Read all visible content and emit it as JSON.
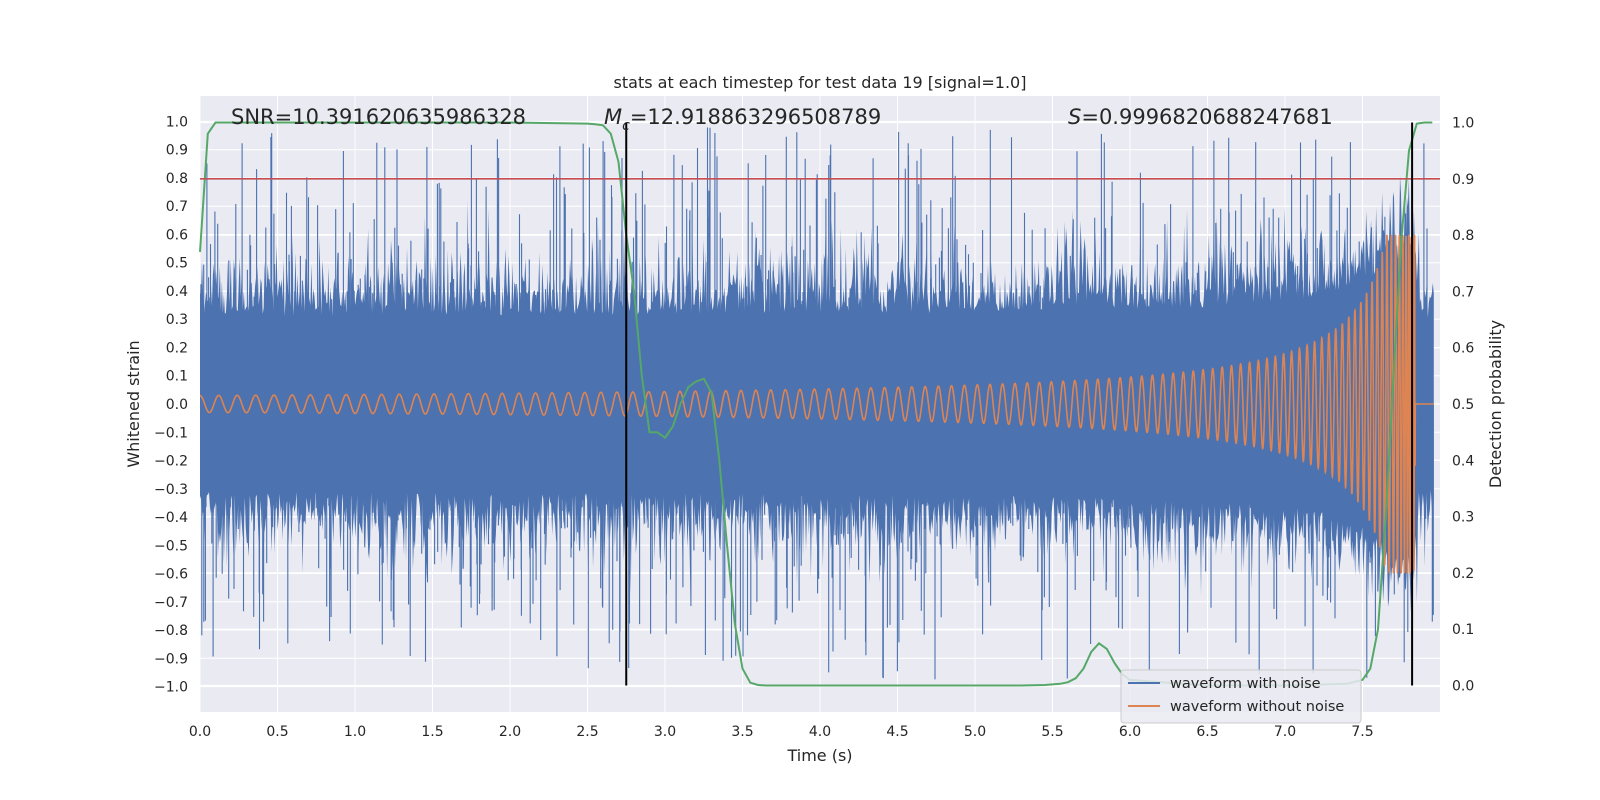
{
  "chart_data": {
    "type": "line",
    "title": "stats at each timestep for test data 19 [signal=1.0]",
    "xlabel": "Time (s)",
    "ylabel": "Whitened strain",
    "y2label": "Detection probability",
    "xlim": [
      0.0,
      8.0
    ],
    "ylim": [
      -1.09,
      1.09
    ],
    "y2lim": [
      -0.047,
      1.047
    ],
    "x_ticks": [
      "0.0",
      "0.5",
      "1.0",
      "1.5",
      "2.0",
      "2.5",
      "3.0",
      "3.5",
      "4.0",
      "4.5",
      "5.0",
      "5.5",
      "6.0",
      "6.5",
      "7.0",
      "7.5"
    ],
    "y_ticks": [
      "1.0",
      "0.9",
      "0.8",
      "0.7",
      "0.6",
      "0.5",
      "0.4",
      "0.3",
      "0.2",
      "0.1",
      "0.0",
      "−0.1",
      "−0.2",
      "−0.3",
      "−0.4",
      "−0.5",
      "−0.6",
      "−0.7",
      "−0.8",
      "−0.9",
      "−1.0"
    ],
    "y2_ticks": [
      "1.0",
      "0.9",
      "0.8",
      "0.7",
      "0.6",
      "0.5",
      "0.4",
      "0.3",
      "0.2",
      "0.1",
      "0.0"
    ],
    "annotations": {
      "snr": "SNR=10.391620635986328",
      "mc_symbol": "M",
      "mc_sub": "c",
      "mc_value": "=12.918863296508789",
      "s_symbol": "S",
      "s_value": "=0.9996820688247681"
    },
    "threshold": 0.9,
    "vlines_x": [
      2.75,
      7.82
    ],
    "signal_end_x": 7.84,
    "series": [
      {
        "name": "waveform with noise",
        "color": "#4c72b0"
      },
      {
        "name": "waveform without noise",
        "color": "#dd8452"
      },
      {
        "name": "detection probability",
        "color": "#55a868",
        "x": [
          0.0,
          0.05,
          0.1,
          0.2,
          0.5,
          1.0,
          1.5,
          2.0,
          2.5,
          2.55,
          2.6,
          2.65,
          2.7,
          2.75,
          2.8,
          2.85,
          2.9,
          2.95,
          3.0,
          3.05,
          3.1,
          3.15,
          3.2,
          3.25,
          3.3,
          3.35,
          3.4,
          3.45,
          3.5,
          3.55,
          3.6,
          3.65,
          4.0,
          4.5,
          5.0,
          5.3,
          5.45,
          5.55,
          5.6,
          5.65,
          5.7,
          5.75,
          5.8,
          5.85,
          5.9,
          5.95,
          6.0,
          6.5,
          7.0,
          7.4,
          7.5,
          7.55,
          7.6,
          7.65,
          7.7,
          7.75,
          7.8,
          7.85,
          7.9,
          7.95
        ],
        "y": [
          0.77,
          0.98,
          1.0,
          1.0,
          1.0,
          1.0,
          1.0,
          1.0,
          0.998,
          0.997,
          0.995,
          0.98,
          0.93,
          0.8,
          0.7,
          0.55,
          0.45,
          0.45,
          0.44,
          0.46,
          0.5,
          0.53,
          0.54,
          0.545,
          0.52,
          0.4,
          0.25,
          0.11,
          0.03,
          0.005,
          0.001,
          0.0,
          0.0,
          0.0,
          0.0,
          0.0,
          0.001,
          0.003,
          0.006,
          0.013,
          0.03,
          0.06,
          0.075,
          0.065,
          0.04,
          0.02,
          0.01,
          0.0,
          0.0,
          0.003,
          0.01,
          0.03,
          0.1,
          0.3,
          0.55,
          0.79,
          0.95,
          0.998,
          1.0,
          1.0
        ]
      },
      {
        "name": "threshold",
        "color": "#c44e52"
      }
    ],
    "legend": [
      {
        "label": "waveform with noise",
        "color": "#4c72b0"
      },
      {
        "label": "waveform without noise",
        "color": "#dd8452"
      }
    ],
    "grid": true,
    "legend_loc": "lower right"
  }
}
